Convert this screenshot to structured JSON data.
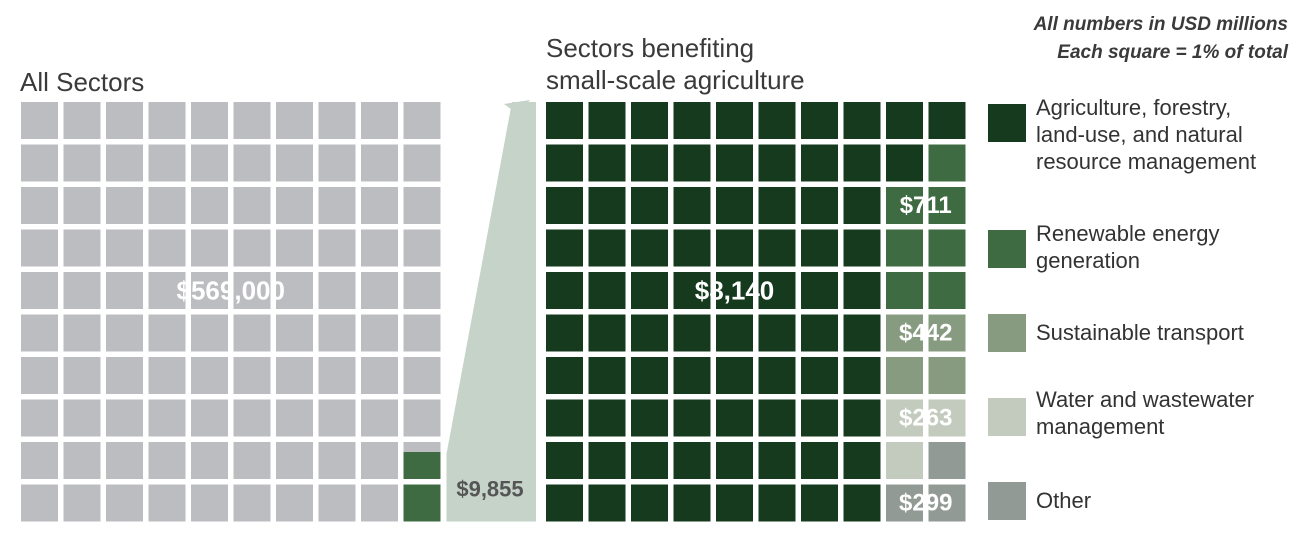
{
  "chart_data": {
    "type": "waffle",
    "note_lines": [
      "All numbers in USD millions",
      "Each square = 1% of total"
    ],
    "colors": {
      "gray": "#bcbdc0",
      "agriculture": "#163a1e",
      "renewable": "#3e6b42",
      "transport": "#879b80",
      "water": "#c3cbbe",
      "other": "#929a95",
      "connector": "#c5d3c8"
    },
    "all_sectors": {
      "title": "All Sectors",
      "total": 569000,
      "total_label": "$569,000",
      "highlight_squares": 2,
      "highlight_value": 9855,
      "highlight_label": "$9,855"
    },
    "small_scale_agriculture": {
      "title": "Sectors benefiting small-scale agriculture",
      "title_lines": [
        "Sectors benefiting",
        "small-scale agriculture"
      ],
      "categories": [
        {
          "name": "Agriculture, forestry, land-use, and natural resource management",
          "legend_lines": [
            "Agriculture, forestry,",
            "land-use, and natural",
            "resource management"
          ],
          "value": 8140,
          "label": "$8,140",
          "squares": 83,
          "color_key": "agriculture"
        },
        {
          "name": "Renewable energy generation",
          "legend_lines": [
            "Renewable energy",
            "generation"
          ],
          "value": 711,
          "label": "$711",
          "squares": 7,
          "color_key": "renewable"
        },
        {
          "name": "Sustainable transport",
          "legend_lines": [
            "Sustainable transport"
          ],
          "value": 442,
          "label": "$442",
          "squares": 4,
          "color_key": "transport"
        },
        {
          "name": "Water and wastewater management",
          "legend_lines": [
            "Water and wastewater",
            "management"
          ],
          "value": 263,
          "label": "$263",
          "squares": 3,
          "color_key": "water"
        },
        {
          "name": "Other",
          "legend_lines": [
            "Other"
          ],
          "value": 299,
          "label": "$299",
          "squares": 3,
          "color_key": "other"
        }
      ]
    }
  }
}
